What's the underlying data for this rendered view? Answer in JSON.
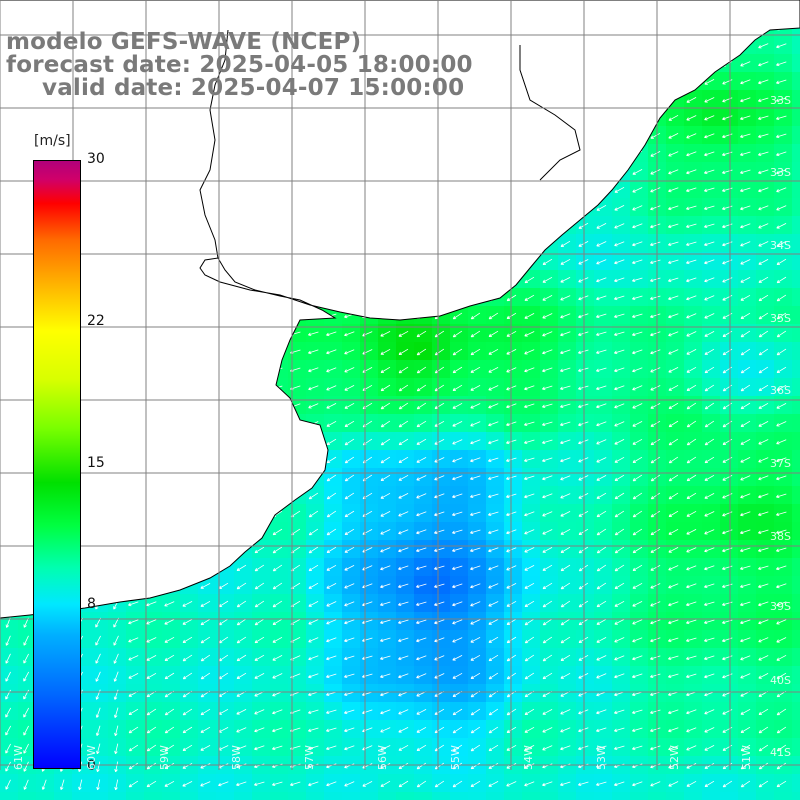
{
  "header": {
    "line1": "modelo GEFS-WAVE (NCEP)",
    "line2": "forecast date: 2025-04-05 18:00:00",
    "line3": "valid date: 2025-04-07 15:00:00"
  },
  "colorbar": {
    "unit": "[m/s]",
    "ticks": [
      {
        "label": "30",
        "value": 30
      },
      {
        "label": "22",
        "value": 22
      },
      {
        "label": "15",
        "value": 15
      },
      {
        "label": "8",
        "value": 8
      },
      {
        "label": "0",
        "value": 0
      }
    ],
    "min": 0,
    "max": 30
  },
  "map": {
    "latitude_labels": [
      "33S",
      "33S",
      "34S",
      "35S",
      "36S",
      "37S",
      "38S",
      "39S",
      "40S",
      "41S"
    ],
    "longitude_labels": [
      "61W",
      "60W",
      "59W",
      "58W",
      "57W",
      "56W",
      "55W",
      "54W",
      "53W",
      "52W",
      "51W"
    ],
    "field": "wind speed",
    "colors": {
      "land": "#ffffff",
      "coast": "#000000",
      "grid": "#808080",
      "arrows": "#ffffff",
      "header_text": "#7a7a7a"
    }
  }
}
